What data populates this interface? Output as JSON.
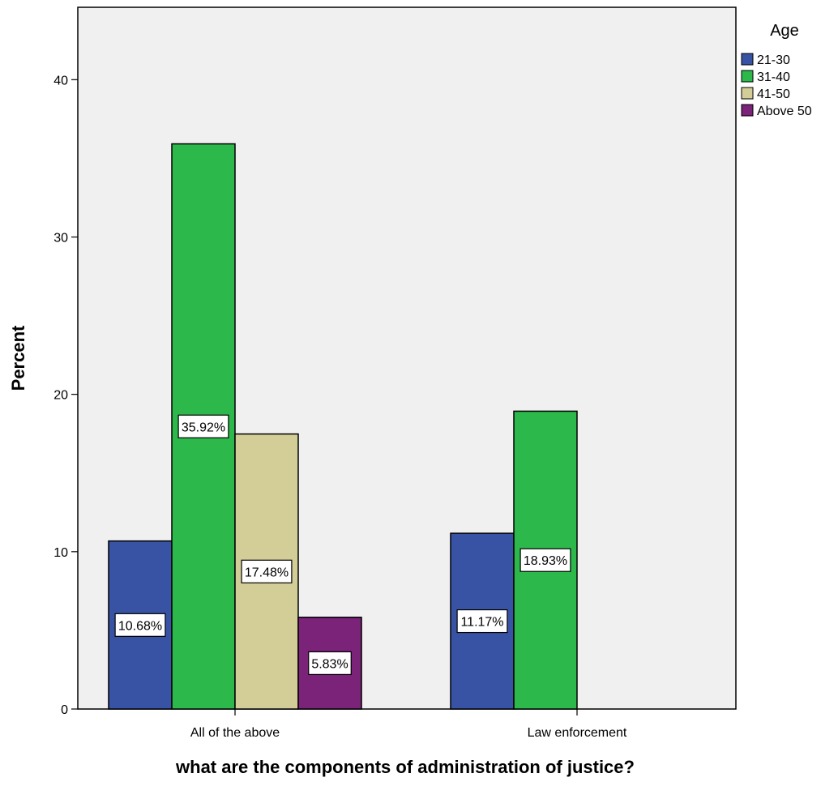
{
  "chart_data": {
    "type": "bar",
    "title": "",
    "xlabel": "what are the components of administration of justice?",
    "ylabel": "Percent",
    "ylim": [
      0,
      44.6
    ],
    "yticks": [
      "0",
      "10",
      "20",
      "30",
      "40"
    ],
    "grid": false,
    "legend_title": "Age",
    "legend_position": "right",
    "categories": [
      "All of the above",
      "Law enforcement"
    ],
    "series": [
      {
        "name": "21-30",
        "color": "#3953a4",
        "values": [
          10.68,
          11.17
        ],
        "labels": [
          "10.68%",
          "11.17%"
        ]
      },
      {
        "name": "31-40",
        "color": "#2db84b",
        "values": [
          35.92,
          18.93
        ],
        "labels": [
          "35.92%",
          "18.93%"
        ]
      },
      {
        "name": "41-50",
        "color": "#d3ce97",
        "values": [
          17.48,
          null
        ],
        "labels": [
          "17.48%",
          ""
        ]
      },
      {
        "name": "Above 50",
        "color": "#7b2279",
        "values": [
          5.83,
          null
        ],
        "labels": [
          "5.83%",
          ""
        ]
      }
    ],
    "plot_background": "#f0f0f0"
  }
}
